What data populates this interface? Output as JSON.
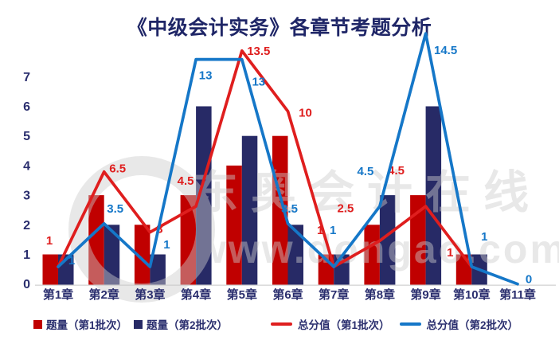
{
  "title": "《中级会计实务》各章节考题分析",
  "watermark": {
    "brand_text": "东奥会计在线",
    "url_text": "www.dongao.com",
    "logo_glyph": "d"
  },
  "colors": {
    "title_text": "#1F2667",
    "axis_text": "#2A2E6E",
    "bar_batch1": "#C00000",
    "bar_batch2": "#272A66",
    "line_batch1": "#DF1E1E",
    "line_batch2": "#1577C8",
    "baseline": "#D6D6D6",
    "watermark": "#CDCDCD"
  },
  "chart_data": {
    "type": "combo_bar_line",
    "title": "《中级会计实务》各章节考题分析",
    "categories": [
      "第1章",
      "第2章",
      "第3章",
      "第4章",
      "第5章",
      "第6章",
      "第7章",
      "第8章",
      "第9章",
      "第10章",
      "第11章"
    ],
    "primary_axis": {
      "ticks": [
        "0",
        "1",
        "2",
        "3",
        "4",
        "5",
        "6",
        "7"
      ],
      "min": 0,
      "max": 7,
      "gridlines": false
    },
    "secondary_axis": {
      "visible": false
    },
    "series": [
      {
        "name": "题量（第1批次）",
        "type": "bar",
        "axis": "primary",
        "color": "#C00000",
        "values": [
          1,
          3,
          2,
          3,
          4,
          5,
          1,
          2,
          3,
          1,
          null
        ]
      },
      {
        "name": "题量（第2批次）",
        "type": "bar",
        "axis": "primary",
        "color": "#272A66",
        "values": [
          1,
          2,
          1,
          6,
          5,
          2,
          1,
          3,
          6,
          1,
          null
        ]
      },
      {
        "name": "总分值（第1批次）",
        "type": "line",
        "axis": "secondary",
        "color": "#DF1E1E",
        "values": [
          1,
          6.5,
          3,
          4.5,
          13.5,
          10,
          1,
          2.5,
          4.5,
          1,
          null
        ]
      },
      {
        "name": "总分值（第2批次）",
        "type": "line",
        "axis": "secondary",
        "color": "#1577C8",
        "values": [
          1,
          3.5,
          1,
          13,
          13,
          3.5,
          1,
          4.5,
          14.5,
          1,
          0
        ]
      }
    ],
    "data_labels": true,
    "legend_position": "bottom"
  },
  "legend": {
    "items": [
      {
        "label": "题量（第1批次）",
        "swatch": "square",
        "color": "#C00000"
      },
      {
        "label": "题量（第2批次）",
        "swatch": "square",
        "color": "#272A66"
      },
      {
        "label": "总分值（第1批次）",
        "swatch": "line",
        "color": "#DF1E1E"
      },
      {
        "label": "总分值（第2批次）",
        "swatch": "line",
        "color": "#1577C8"
      }
    ]
  }
}
